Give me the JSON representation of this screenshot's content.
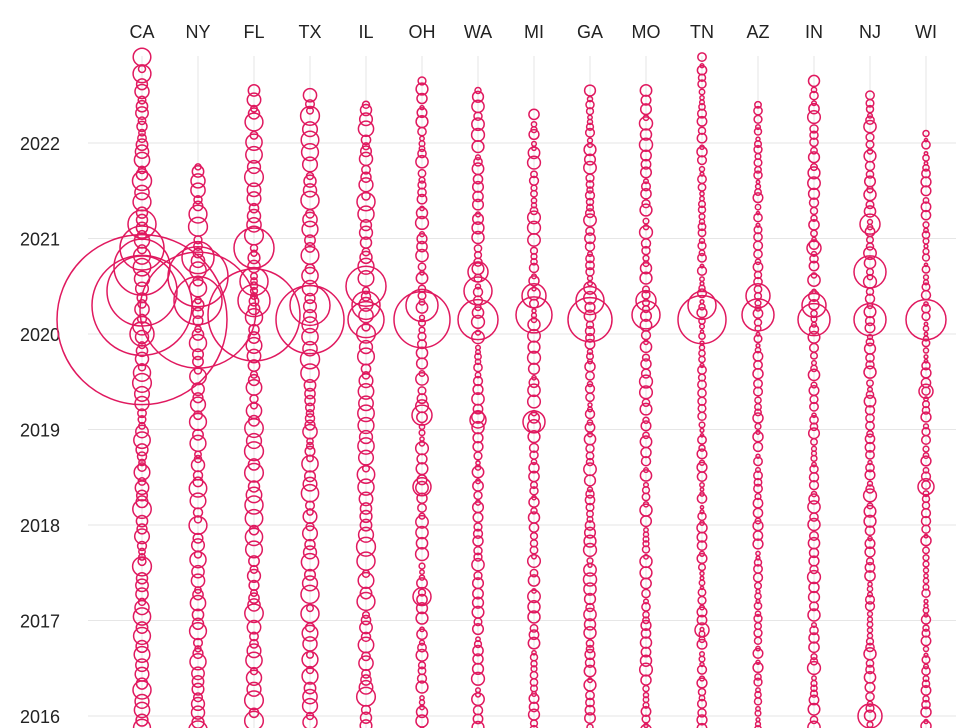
{
  "chart_data": {
    "type": "scatter",
    "description_kind": "bubble strip plot by state over time",
    "categories": [
      "CA",
      "NY",
      "FL",
      "TX",
      "IL",
      "OH",
      "WA",
      "MI",
      "GA",
      "MO",
      "TN",
      "AZ",
      "IN",
      "NJ",
      "WI"
    ],
    "y_ticks": [
      "2016",
      "2017",
      "2018",
      "2019",
      "2020",
      "2021",
      "2022"
    ],
    "ylim": [
      2015.9,
      2022.95
    ],
    "grid": true,
    "color": "#e0195f",
    "clusters": {
      "CA": [
        [
          2020.15,
          85
        ],
        [
          2020.3,
          50
        ],
        [
          2020.7,
          28
        ],
        [
          2020.9,
          22
        ],
        [
          2020.45,
          35
        ],
        [
          2021.15,
          14
        ],
        [
          2020.0,
          12
        ]
      ],
      "NY": [
        [
          2020.25,
          58
        ],
        [
          2020.6,
          30
        ],
        [
          2020.35,
          24
        ],
        [
          2020.8,
          16
        ]
      ],
      "FL": [
        [
          2020.2,
          46
        ],
        [
          2020.9,
          20
        ],
        [
          2020.55,
          14
        ],
        [
          2020.35,
          16
        ]
      ],
      "TX": [
        [
          2020.15,
          34
        ],
        [
          2020.3,
          20
        ]
      ],
      "IL": [
        [
          2020.5,
          20
        ],
        [
          2020.15,
          18
        ],
        [
          2020.3,
          14
        ]
      ],
      "OH": [
        [
          2020.15,
          28
        ],
        [
          2020.3,
          16
        ],
        [
          2019.15,
          10
        ],
        [
          2018.4,
          9
        ],
        [
          2017.25,
          9
        ]
      ],
      "WA": [
        [
          2020.15,
          20
        ],
        [
          2020.45,
          14
        ],
        [
          2020.65,
          10
        ],
        [
          2019.1,
          8
        ]
      ],
      "MI": [
        [
          2020.2,
          18
        ],
        [
          2020.4,
          12
        ],
        [
          2019.08,
          11
        ]
      ],
      "GA": [
        [
          2020.15,
          22
        ],
        [
          2020.35,
          14
        ]
      ],
      "MO": [
        [
          2020.2,
          14
        ],
        [
          2020.35,
          10
        ]
      ],
      "TN": [
        [
          2020.15,
          24
        ],
        [
          2020.3,
          14
        ],
        [
          2016.9,
          7
        ]
      ],
      "AZ": [
        [
          2020.2,
          16
        ],
        [
          2020.4,
          12
        ]
      ],
      "IN": [
        [
          2020.15,
          16
        ],
        [
          2020.3,
          12
        ],
        [
          2020.9,
          7
        ]
      ],
      "NJ": [
        [
          2020.15,
          16
        ],
        [
          2020.65,
          16
        ],
        [
          2021.15,
          10
        ],
        [
          2016.0,
          12
        ]
      ],
      "WI": [
        [
          2020.15,
          20
        ],
        [
          2018.4,
          8
        ],
        [
          2019.4,
          7
        ]
      ]
    },
    "top_years": {
      "CA": 2022.9,
      "NY": 2021.75,
      "FL": 2022.55,
      "TX": 2022.5,
      "IL": 2022.4,
      "OH": 2022.65,
      "WA": 2022.55,
      "MI": 2022.3,
      "GA": 2022.55,
      "MO": 2022.55,
      "TN": 2022.9,
      "AZ": 2022.4,
      "IN": 2022.65,
      "NJ": 2022.5,
      "WI": 2022.1
    }
  }
}
